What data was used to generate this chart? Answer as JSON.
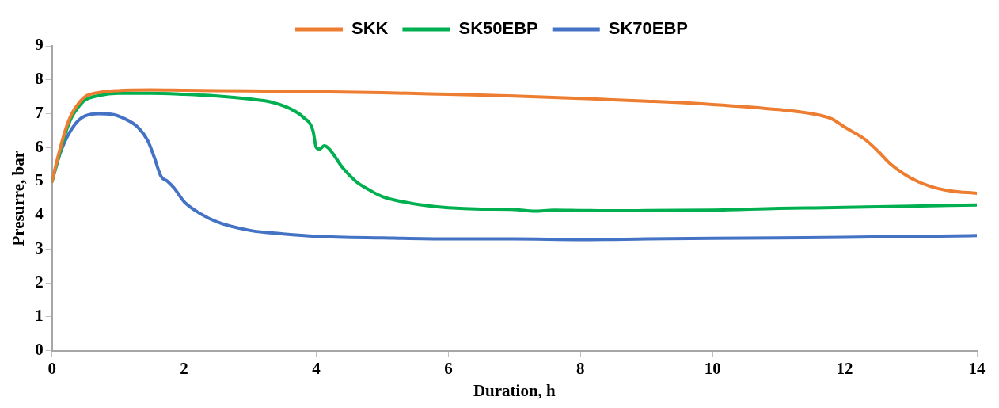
{
  "chart_data": {
    "type": "line",
    "xlabel": "Duration, h",
    "ylabel": "Presurre, bar",
    "xlim": [
      0,
      14
    ],
    "xticks": [
      0,
      2,
      4,
      6,
      8,
      10,
      12,
      14
    ],
    "ylim": [
      0,
      9
    ],
    "yticks": [
      0,
      1,
      2,
      3,
      4,
      5,
      6,
      7,
      8,
      9
    ],
    "grid": false,
    "legend": "top",
    "marker": "none",
    "line_style": "solid",
    "series": [
      {
        "name": "SKK",
        "color": "#ed7d31",
        "x": [
          0,
          0.1,
          0.2,
          0.3,
          0.4,
          0.5,
          0.7,
          1,
          1.5,
          2,
          3,
          4,
          5,
          6,
          7,
          8,
          9,
          10,
          11,
          11.5,
          11.8,
          12,
          12.3,
          12.5,
          12.7,
          13,
          13.3,
          13.6,
          14
        ],
        "values": [
          5.0,
          5.8,
          6.5,
          7.0,
          7.3,
          7.5,
          7.62,
          7.68,
          7.7,
          7.69,
          7.67,
          7.65,
          7.62,
          7.57,
          7.52,
          7.45,
          7.37,
          7.27,
          7.12,
          7.0,
          6.85,
          6.6,
          6.25,
          5.9,
          5.5,
          5.1,
          4.85,
          4.72,
          4.65
        ]
      },
      {
        "name": "SK50EBP",
        "color": "#00b050",
        "x": [
          0,
          0.1,
          0.2,
          0.3,
          0.4,
          0.5,
          0.7,
          1,
          1.5,
          2,
          2.5,
          3,
          3.3,
          3.6,
          3.8,
          3.95,
          4.0,
          4.05,
          4.12,
          4.2,
          4.4,
          4.6,
          4.8,
          5.0,
          5.3,
          5.6,
          6,
          6.5,
          7,
          7.3,
          7.6,
          8,
          8.5,
          9,
          10,
          11,
          12,
          13,
          14
        ],
        "values": [
          5.0,
          5.7,
          6.4,
          6.9,
          7.2,
          7.4,
          7.53,
          7.6,
          7.6,
          7.57,
          7.52,
          7.43,
          7.35,
          7.15,
          6.9,
          6.5,
          6.0,
          5.95,
          6.05,
          5.95,
          5.4,
          5.0,
          4.75,
          4.55,
          4.4,
          4.3,
          4.22,
          4.18,
          4.17,
          4.12,
          4.15,
          4.14,
          4.13,
          4.14,
          4.15,
          4.2,
          4.23,
          4.27,
          4.3
        ]
      },
      {
        "name": "SK70EBP",
        "color": "#4472c4",
        "x": [
          0,
          0.1,
          0.2,
          0.3,
          0.4,
          0.5,
          0.7,
          0.9,
          1.1,
          1.3,
          1.45,
          1.55,
          1.65,
          1.75,
          1.85,
          2,
          2.2,
          2.5,
          3,
          3.5,
          4,
          5,
          6,
          7,
          8,
          9,
          10,
          11,
          12,
          13,
          14
        ],
        "values": [
          5.0,
          5.7,
          6.2,
          6.55,
          6.8,
          6.93,
          7.0,
          6.98,
          6.85,
          6.6,
          6.2,
          5.7,
          5.15,
          5.0,
          4.8,
          4.4,
          4.1,
          3.8,
          3.55,
          3.45,
          3.38,
          3.33,
          3.3,
          3.3,
          3.28,
          3.3,
          3.32,
          3.33,
          3.35,
          3.37,
          3.4
        ]
      }
    ]
  }
}
